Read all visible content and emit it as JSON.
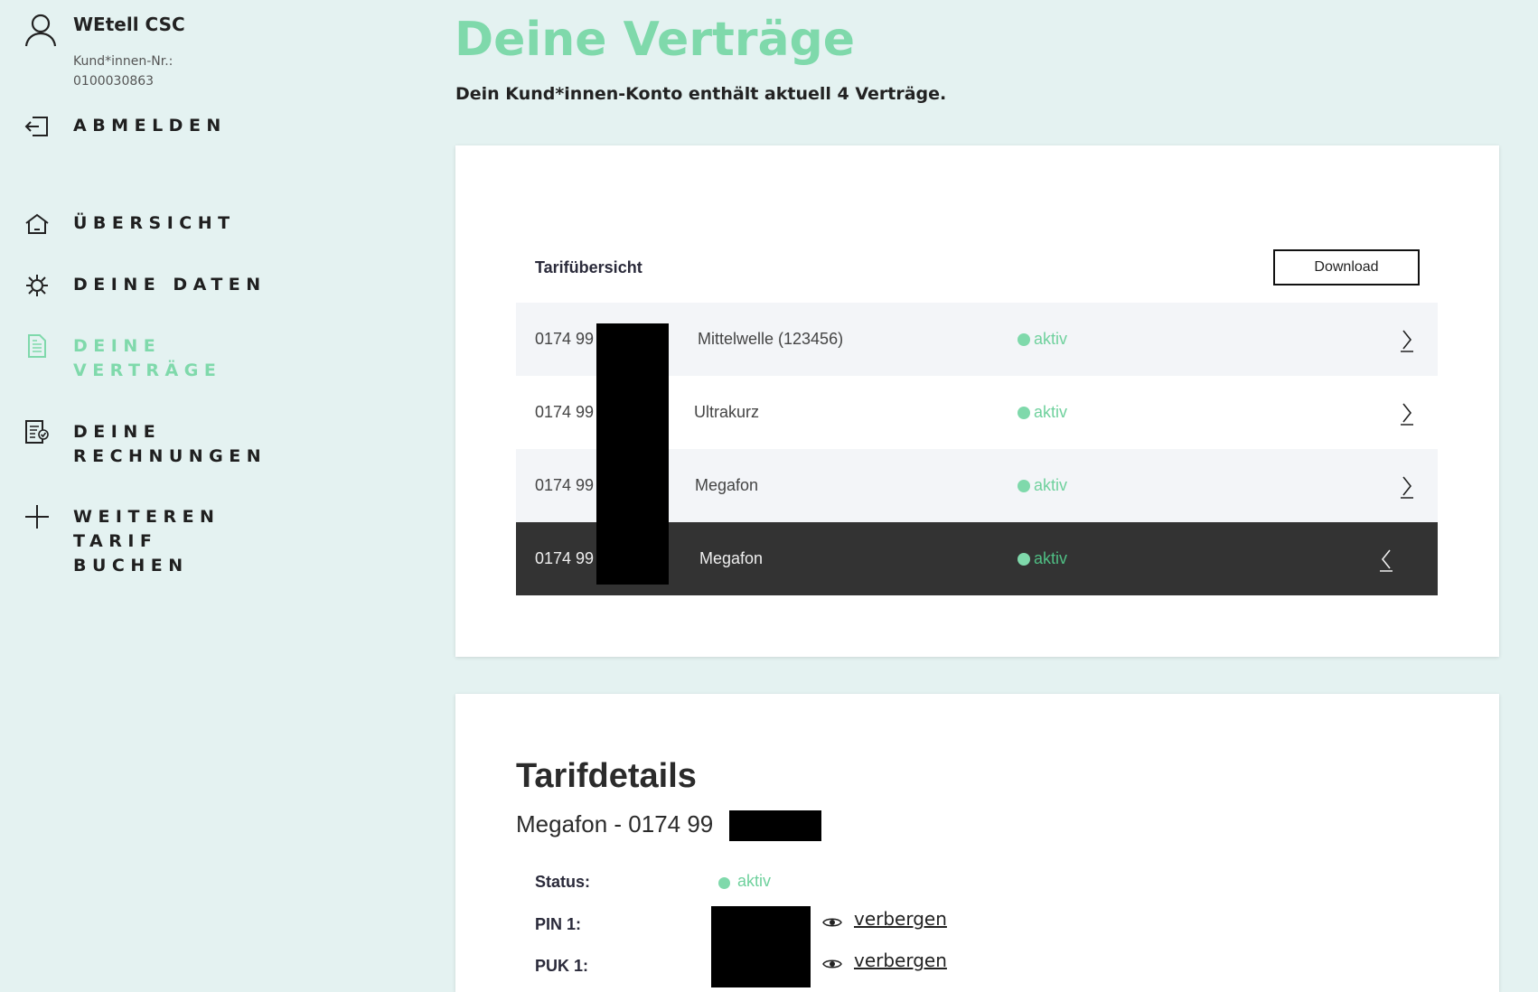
{
  "user": {
    "name": "WEtell CSC",
    "customer_label": "Kund*innen-Nr.:",
    "customer_number": "0100030863",
    "icon": "user-icon"
  },
  "logout": {
    "label": "ABMELDEN",
    "icon": "logout-icon"
  },
  "sidebar": {
    "items": [
      {
        "lines": [
          "ÜBERSICHT"
        ],
        "icon": "home-icon",
        "active": false
      },
      {
        "lines": [
          "DEINE DATEN"
        ],
        "icon": "gear-icon",
        "active": false
      },
      {
        "lines": [
          "DEINE",
          "VERTRÄGE"
        ],
        "icon": "document-icon",
        "active": true
      },
      {
        "lines": [
          "DEINE",
          "RECHNUNGEN"
        ],
        "icon": "invoice-check-icon",
        "active": false
      },
      {
        "lines": [
          "WEITEREN",
          "TARIF",
          "BUCHEN"
        ],
        "icon": "plus-icon",
        "active": false
      }
    ]
  },
  "page": {
    "title": "Deine Verträge",
    "subtitle": "Dein Kund*innen-Konto enthält aktuell 4 Verträge."
  },
  "overview": {
    "title": "Tarifübersicht",
    "download_label": "Download",
    "rows": [
      {
        "phone": "0174 99",
        "tariff": "Mittelwelle (123456)",
        "status": "aktiv",
        "expanded": false
      },
      {
        "phone": "0174 99",
        "tariff": "Ultrakurz",
        "status": "aktiv",
        "expanded": false
      },
      {
        "phone": "0174 99",
        "tariff": "Megafon",
        "status": "aktiv",
        "expanded": false
      },
      {
        "phone": "0174 99",
        "tariff": "Megafon",
        "status": "aktiv",
        "expanded": true
      }
    ]
  },
  "details": {
    "title": "Tarifdetails",
    "subtitle": "Megafon - 0174 99",
    "status_label": "Status:",
    "status_value": "aktiv",
    "pin_label": "PIN 1:",
    "puk_label": "PUK 1:",
    "hide_label": "verbergen"
  },
  "colors": {
    "accent": "#7fd9ab",
    "background": "#e4f2f1",
    "selected_row": "#333333"
  }
}
